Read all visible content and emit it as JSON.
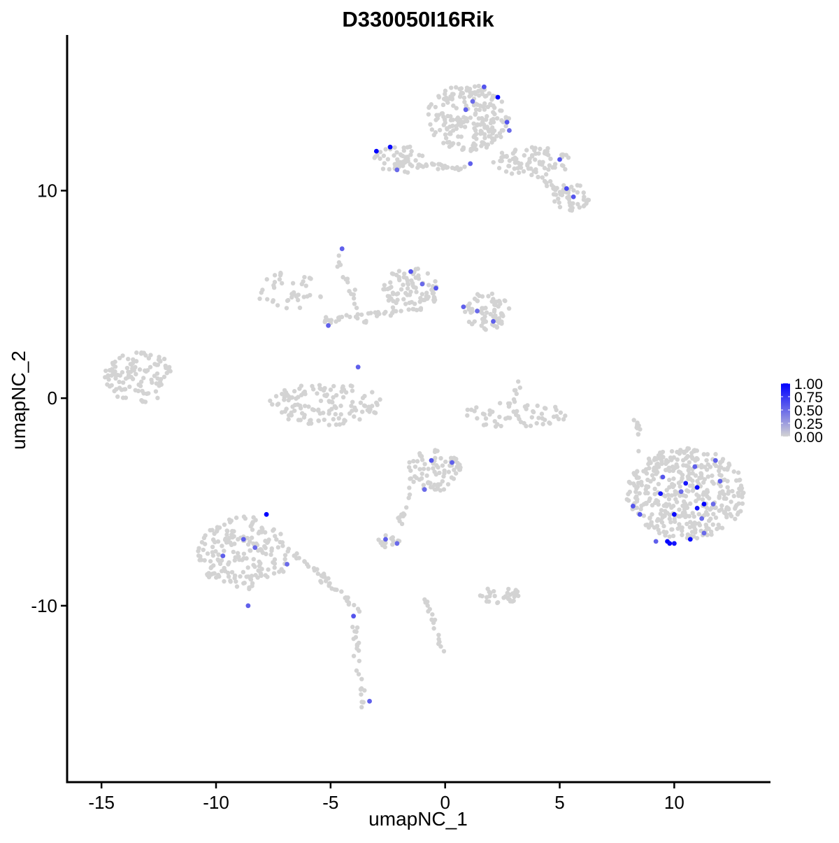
{
  "chart_data": {
    "type": "scatter",
    "title": "D330050I16Rik",
    "xlabel": "umapNC_1",
    "ylabel": "umapNC_2",
    "xlim": [
      -16.5,
      14.2
    ],
    "ylim": [
      -18.5,
      17.5
    ],
    "x_ticks": [
      -15,
      -10,
      -5,
      0,
      5,
      10
    ],
    "x_tick_labels": [
      "-15",
      "-10",
      "-5",
      "0",
      "5",
      "10"
    ],
    "y_ticks": [
      -10,
      0,
      10
    ],
    "y_tick_labels": [
      "-10",
      "0",
      "10"
    ],
    "grid": false,
    "legend_position": "right",
    "colors": {
      "low": "#d3d3d3",
      "high": "#0000ff",
      "axis": "#000000"
    },
    "legend": {
      "type": "colorbar",
      "labels": [
        "1.00",
        "0.75",
        "0.50",
        "0.25",
        "0.00"
      ],
      "values": [
        1.0,
        0.75,
        0.5,
        0.25,
        0.0
      ]
    },
    "clusters": [
      {
        "cx": 1.0,
        "cy": 13.5,
        "rx": 1.8,
        "ry": 1.6,
        "n": 220
      },
      {
        "cx": 3.8,
        "cy": 11.4,
        "rx": 1.7,
        "ry": 0.7,
        "n": 80
      },
      {
        "cx": 5.5,
        "cy": 9.7,
        "rx": 0.8,
        "ry": 0.7,
        "n": 40
      },
      {
        "cx": -2.0,
        "cy": 11.5,
        "rx": 1.1,
        "ry": 0.7,
        "n": 50
      },
      {
        "cx": -1.5,
        "cy": 5.2,
        "rx": 1.2,
        "ry": 1.1,
        "n": 90
      },
      {
        "cx": 1.8,
        "cy": 4.2,
        "rx": 1.0,
        "ry": 0.9,
        "n": 70
      },
      {
        "cx": -6.8,
        "cy": 5.2,
        "rx": 1.5,
        "ry": 1.0,
        "n": 40
      },
      {
        "cx": -5.2,
        "cy": -0.3,
        "rx": 2.5,
        "ry": 1.0,
        "n": 130
      },
      {
        "cx": -13.3,
        "cy": 1.0,
        "rx": 1.6,
        "ry": 1.2,
        "n": 110
      },
      {
        "cx": 3.0,
        "cy": -0.8,
        "rx": 2.4,
        "ry": 0.6,
        "n": 60
      },
      {
        "cx": 10.5,
        "cy": -4.6,
        "rx": 2.6,
        "ry": 2.2,
        "n": 420
      },
      {
        "cx": -0.5,
        "cy": -3.5,
        "rx": 1.2,
        "ry": 1.0,
        "n": 80
      },
      {
        "cx": -8.8,
        "cy": -7.5,
        "rx": 2.0,
        "ry": 1.8,
        "n": 200
      },
      {
        "cx": 2.4,
        "cy": -9.5,
        "rx": 0.9,
        "ry": 0.4,
        "n": 35
      },
      {
        "cx": -2.5,
        "cy": -6.9,
        "rx": 0.5,
        "ry": 0.3,
        "n": 15
      }
    ],
    "trails": [
      {
        "x1": -1.5,
        "y1": 11.3,
        "x2": 1.0,
        "y2": 11.1,
        "n": 25
      },
      {
        "x1": 3.0,
        "y1": 11.5,
        "x2": 5.5,
        "y2": 9.6,
        "n": 20
      },
      {
        "x1": -5.3,
        "y1": 3.7,
        "x2": -2.0,
        "y2": 4.2,
        "n": 30
      },
      {
        "x1": -4.8,
        "y1": 7.0,
        "x2": -3.5,
        "y2": 3.5,
        "n": 18
      },
      {
        "x1": -6.5,
        "y1": -7.5,
        "x2": -3.6,
        "y2": -10.4,
        "n": 40
      },
      {
        "x1": -4.0,
        "y1": -10.8,
        "x2": -3.5,
        "y2": -15.0,
        "n": 25
      },
      {
        "x1": -1.3,
        "y1": -4.3,
        "x2": -2.0,
        "y2": -6.0,
        "n": 12
      },
      {
        "x1": -0.8,
        "y1": -9.5,
        "x2": -0.1,
        "y2": -12.2,
        "n": 18
      },
      {
        "x1": 8.5,
        "y1": -2.5,
        "x2": 8.2,
        "y2": -0.3,
        "n": 12
      },
      {
        "x1": 2.8,
        "y1": -0.5,
        "x2": 3.4,
        "y2": 1.0,
        "n": 8
      }
    ],
    "points": [
      {
        "x": 1.7,
        "y": 15.0,
        "v": 0.6
      },
      {
        "x": 2.3,
        "y": 14.5,
        "v": 1.0
      },
      {
        "x": 1.2,
        "y": 14.3,
        "v": 0.5
      },
      {
        "x": 0.9,
        "y": 13.9,
        "v": 0.55
      },
      {
        "x": 2.7,
        "y": 13.3,
        "v": 0.6
      },
      {
        "x": 2.8,
        "y": 12.9,
        "v": 0.5
      },
      {
        "x": -3.0,
        "y": 11.9,
        "v": 1.0
      },
      {
        "x": -2.4,
        "y": 12.1,
        "v": 0.95
      },
      {
        "x": -2.1,
        "y": 11.0,
        "v": 0.5
      },
      {
        "x": 1.1,
        "y": 11.3,
        "v": 0.55
      },
      {
        "x": 5.0,
        "y": 11.5,
        "v": 0.6
      },
      {
        "x": 5.3,
        "y": 10.1,
        "v": 0.65
      },
      {
        "x": 5.6,
        "y": 9.7,
        "v": 0.6
      },
      {
        "x": -4.5,
        "y": 7.2,
        "v": 0.55
      },
      {
        "x": -1.5,
        "y": 6.1,
        "v": 0.6
      },
      {
        "x": -1.0,
        "y": 5.5,
        "v": 0.5
      },
      {
        "x": -0.4,
        "y": 5.3,
        "v": 0.6
      },
      {
        "x": 0.8,
        "y": 4.4,
        "v": 0.55
      },
      {
        "x": 1.4,
        "y": 4.2,
        "v": 0.5
      },
      {
        "x": 2.1,
        "y": 3.7,
        "v": 0.55
      },
      {
        "x": -5.1,
        "y": 3.5,
        "v": 0.55
      },
      {
        "x": -3.8,
        "y": 1.5,
        "v": 0.55
      },
      {
        "x": -0.6,
        "y": -3.0,
        "v": 0.6
      },
      {
        "x": 0.3,
        "y": -3.1,
        "v": 0.55
      },
      {
        "x": -0.9,
        "y": -4.4,
        "v": 0.5
      },
      {
        "x": -7.8,
        "y": -5.6,
        "v": 1.0
      },
      {
        "x": -8.8,
        "y": -6.8,
        "v": 0.55
      },
      {
        "x": -8.3,
        "y": -7.2,
        "v": 0.5
      },
      {
        "x": -9.7,
        "y": -7.6,
        "v": 0.55
      },
      {
        "x": -6.9,
        "y": -8.0,
        "v": 0.5
      },
      {
        "x": -8.6,
        "y": -10.0,
        "v": 0.55
      },
      {
        "x": -4.0,
        "y": -10.5,
        "v": 0.6
      },
      {
        "x": -2.6,
        "y": -6.8,
        "v": 0.55
      },
      {
        "x": -2.1,
        "y": -7.0,
        "v": 0.5
      },
      {
        "x": -3.3,
        "y": -14.6,
        "v": 0.55
      },
      {
        "x": 9.4,
        "y": -4.6,
        "v": 0.9
      },
      {
        "x": 10.0,
        "y": -5.6,
        "v": 0.95
      },
      {
        "x": 10.5,
        "y": -4.1,
        "v": 0.9
      },
      {
        "x": 11.0,
        "y": -4.3,
        "v": 0.95
      },
      {
        "x": 11.3,
        "y": -5.1,
        "v": 1.0
      },
      {
        "x": 11.0,
        "y": -5.3,
        "v": 0.9
      },
      {
        "x": 9.7,
        "y": -6.9,
        "v": 1.0
      },
      {
        "x": 9.8,
        "y": -7.0,
        "v": 0.95
      },
      {
        "x": 10.0,
        "y": -7.0,
        "v": 0.9
      },
      {
        "x": 10.7,
        "y": -6.8,
        "v": 0.95
      },
      {
        "x": 9.5,
        "y": -3.8,
        "v": 0.6
      },
      {
        "x": 12.0,
        "y": -4.0,
        "v": 0.55
      },
      {
        "x": 11.7,
        "y": -5.1,
        "v": 0.5
      },
      {
        "x": 11.8,
        "y": -3.0,
        "v": 0.55
      },
      {
        "x": 8.2,
        "y": -5.2,
        "v": 0.6
      },
      {
        "x": 8.5,
        "y": -5.6,
        "v": 0.6
      },
      {
        "x": 9.2,
        "y": -6.9,
        "v": 0.55
      },
      {
        "x": 11.3,
        "y": -6.5,
        "v": 0.5
      },
      {
        "x": 10.3,
        "y": -4.5,
        "v": 0.5
      },
      {
        "x": 11.2,
        "y": -5.8,
        "v": 0.5
      },
      {
        "x": 10.9,
        "y": -3.3,
        "v": 0.55
      }
    ]
  }
}
